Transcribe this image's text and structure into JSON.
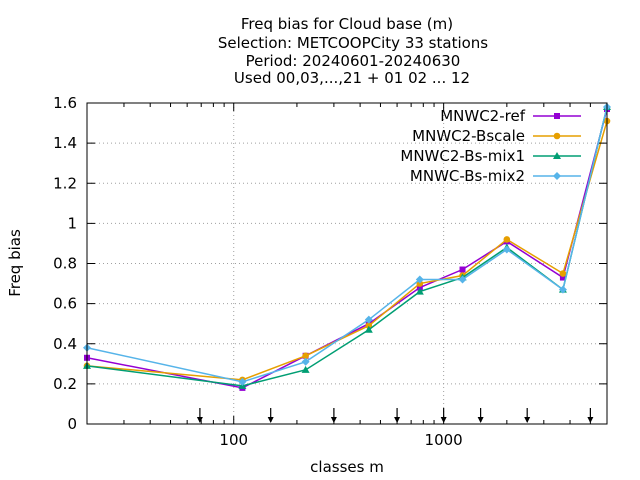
{
  "chart_data": {
    "type": "line",
    "title_lines": [
      "Freq bias  for Cloud base (m)",
      "Selection: METCOOPCity      33 stations",
      "Period: 20240601-20240630",
      "Used 00,03,...,21 + 01 02 ... 12"
    ],
    "xlabel": "classes m",
    "ylabel": "Freq bias",
    "x_scale": "log",
    "xlim": [
      20,
      6000
    ],
    "ylim": [
      0,
      1.6
    ],
    "xticks": [
      100,
      1000
    ],
    "xtick_labels": [
      "100",
      "1000"
    ],
    "yticks": [
      0,
      0.2,
      0.4,
      0.6,
      0.8,
      1,
      1.2,
      1.4,
      1.6
    ],
    "ytick_labels": [
      "0",
      "0.2",
      "0.4",
      "0.6",
      "0.8",
      "1",
      "1.2",
      "1.4",
      "1.6"
    ],
    "grid": true,
    "legend_position": "top-right",
    "class_markers_x": [
      69,
      150,
      300,
      600,
      1000,
      1500,
      2500,
      5000
    ],
    "x": [
      20,
      110,
      220,
      440,
      770,
      1230,
      2000,
      3700,
      6000
    ],
    "series": [
      {
        "name": "MNWC2-ref",
        "color": "#9400d3",
        "marker": "square",
        "values": [
          0.33,
          0.18,
          0.34,
          0.5,
          0.68,
          0.77,
          0.91,
          0.73,
          1.57
        ]
      },
      {
        "name": "MNWC2-Bscale",
        "color": "#e69f00",
        "marker": "circle",
        "values": [
          0.29,
          0.22,
          0.34,
          0.49,
          0.7,
          0.74,
          0.92,
          0.75,
          1.51
        ]
      },
      {
        "name": "MNWC2-Bs-mix1",
        "color": "#009e73",
        "marker": "triangle",
        "values": [
          0.29,
          0.19,
          0.27,
          0.47,
          0.66,
          0.73,
          0.88,
          0.67,
          1.58
        ]
      },
      {
        "name": "MNWC-Bs-mix2",
        "color": "#56b4e9",
        "marker": "diamond",
        "values": [
          0.38,
          0.21,
          0.31,
          0.52,
          0.72,
          0.72,
          0.87,
          0.67,
          1.58
        ]
      }
    ]
  }
}
